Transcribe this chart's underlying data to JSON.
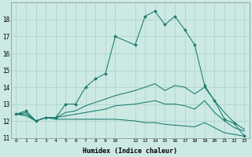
{
  "xlabel": "Humidex (Indice chaleur)",
  "xlim": [
    -0.5,
    23.5
  ],
  "ylim": [
    11,
    19
  ],
  "yticks": [
    11,
    12,
    13,
    14,
    15,
    16,
    17,
    18
  ],
  "xticks": [
    0,
    1,
    2,
    3,
    4,
    5,
    6,
    7,
    8,
    9,
    10,
    12,
    13,
    14,
    15,
    16,
    17,
    18,
    19,
    20,
    21,
    22,
    23
  ],
  "bg_color": "#cce9e4",
  "line_color": "#1a7a6e",
  "grid_color": "#b0d4cd",
  "series": [
    {
      "x": [
        0,
        1,
        2,
        3,
        4,
        5,
        6,
        7,
        8,
        9,
        10,
        12,
        13,
        14,
        15,
        16,
        17,
        18,
        19,
        20,
        21,
        22,
        23
      ],
      "y": [
        12.4,
        12.6,
        12.0,
        12.2,
        12.2,
        13.0,
        13.0,
        14.0,
        14.5,
        14.8,
        17.0,
        16.5,
        18.2,
        18.5,
        17.7,
        18.2,
        17.4,
        16.5,
        14.1,
        13.2,
        12.1,
        11.85,
        11.1
      ],
      "has_markers": true
    },
    {
      "x": [
        0,
        1,
        2,
        3,
        4,
        5,
        6,
        7,
        8,
        9,
        10,
        12,
        13,
        14,
        15,
        16,
        17,
        18,
        19,
        20,
        21,
        22,
        23
      ],
      "y": [
        12.4,
        12.5,
        12.0,
        12.2,
        12.2,
        12.5,
        12.6,
        12.9,
        13.1,
        13.3,
        13.5,
        13.8,
        14.0,
        14.2,
        13.8,
        14.1,
        14.0,
        13.6,
        14.0,
        13.2,
        12.5,
        11.9,
        11.5
      ],
      "has_markers": false
    },
    {
      "x": [
        0,
        1,
        2,
        3,
        4,
        5,
        6,
        7,
        8,
        9,
        10,
        12,
        13,
        14,
        15,
        16,
        17,
        18,
        19,
        20,
        21,
        22,
        23
      ],
      "y": [
        12.4,
        12.4,
        12.0,
        12.2,
        12.2,
        12.3,
        12.4,
        12.5,
        12.6,
        12.7,
        12.9,
        13.0,
        13.1,
        13.2,
        13.0,
        13.0,
        12.9,
        12.7,
        13.2,
        12.5,
        12.0,
        11.6,
        11.4
      ],
      "has_markers": false
    },
    {
      "x": [
        0,
        1,
        2,
        3,
        4,
        5,
        6,
        7,
        8,
        9,
        10,
        12,
        13,
        14,
        15,
        16,
        17,
        18,
        19,
        20,
        21,
        22,
        23
      ],
      "y": [
        12.4,
        12.3,
        12.0,
        12.2,
        12.1,
        12.1,
        12.1,
        12.1,
        12.1,
        12.1,
        12.1,
        12.0,
        11.9,
        11.9,
        11.8,
        11.75,
        11.7,
        11.65,
        11.9,
        11.6,
        11.3,
        11.2,
        11.1
      ],
      "has_markers": false
    }
  ]
}
